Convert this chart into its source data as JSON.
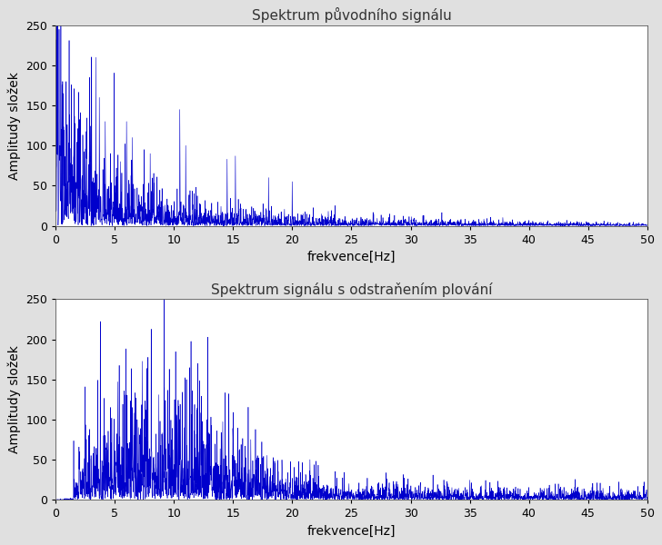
{
  "title1": "Spektrum původního signálu",
  "title2": "Spektrum signálu s odstraňením plování",
  "xlabel": "frekvence[Hz]",
  "ylabel": "Amplitudy složek",
  "xlim1": [
    0,
    50
  ],
  "xlim2": [
    0,
    50
  ],
  "ylim": [
    0,
    250
  ],
  "line_color": "#0000cc",
  "bg_color": "#e0e0e0",
  "plot_bg_color": "#ffffff",
  "title_color": "#333333",
  "linewidth": 0.4,
  "tick_fontsize": 9,
  "label_fontsize": 10,
  "title_fontsize": 11
}
